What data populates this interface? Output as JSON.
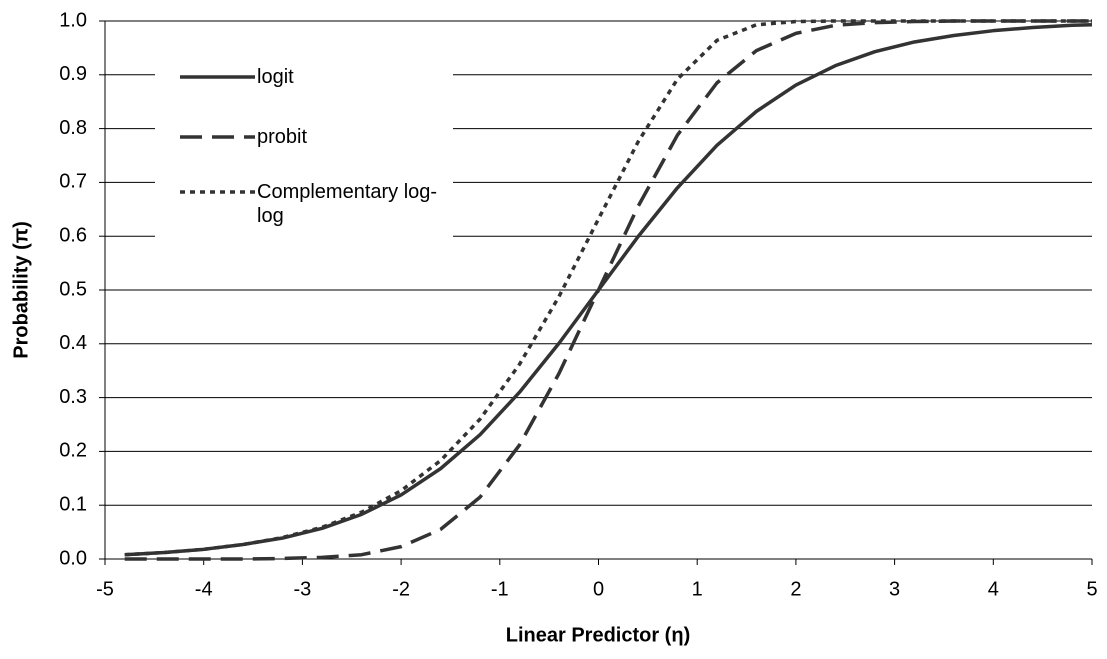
{
  "chart_data": {
    "type": "line",
    "x_label": "Linear Predictor (η)",
    "y_label": "Probability (π)",
    "x": [
      -4.8,
      -4.4,
      -4.0,
      -3.6,
      -3.2,
      -2.8,
      -2.4,
      -2.0,
      -1.6,
      -1.2,
      -0.8,
      -0.4,
      0,
      0.4,
      0.8,
      1.2,
      1.6,
      2.0,
      2.4,
      2.8,
      3.2,
      3.6,
      4.0,
      4.4,
      4.8,
      5.0
    ],
    "series": [
      {
        "name": "logit",
        "color": "#333333",
        "dash": "solid",
        "values": [
          0.008,
          0.012,
          0.018,
          0.027,
          0.039,
          0.057,
          0.083,
          0.119,
          0.168,
          0.231,
          0.31,
          0.401,
          0.5,
          0.599,
          0.69,
          0.769,
          0.832,
          0.881,
          0.917,
          0.943,
          0.961,
          0.973,
          0.982,
          0.988,
          0.992,
          0.993
        ]
      },
      {
        "name": "probit",
        "color": "#333333",
        "dash": "dashed",
        "values": [
          0.0,
          0.0,
          0.0,
          0.0,
          0.001,
          0.003,
          0.008,
          0.023,
          0.055,
          0.115,
          0.212,
          0.345,
          0.5,
          0.655,
          0.788,
          0.885,
          0.945,
          0.977,
          0.992,
          0.997,
          0.999,
          1.0,
          1.0,
          1.0,
          1.0,
          1.0
        ]
      },
      {
        "name": "Complementary log-log",
        "color": "#333333",
        "dash": "dotted",
        "values": [
          0.008,
          0.012,
          0.018,
          0.027,
          0.04,
          0.059,
          0.087,
          0.127,
          0.183,
          0.26,
          0.362,
          0.488,
          0.632,
          0.775,
          0.892,
          0.964,
          0.993,
          0.999,
          1.0,
          1.0,
          1.0,
          1.0,
          1.0,
          1.0,
          1.0,
          1.0
        ]
      }
    ],
    "xlim": [
      -5,
      5
    ],
    "xticks": [
      -5,
      -4,
      -3,
      -2,
      -1,
      0,
      1,
      2,
      3,
      4,
      5
    ],
    "ylim": [
      0,
      1
    ],
    "yticks": [
      {
        "value": 0,
        "label": "0.0"
      },
      0.1,
      0.2,
      0.3,
      0.4,
      0.5,
      0.6,
      0.7,
      0.8,
      0.9,
      {
        "value": 1,
        "label": "1.0"
      }
    ],
    "grid": true,
    "legend": "upper-left"
  }
}
